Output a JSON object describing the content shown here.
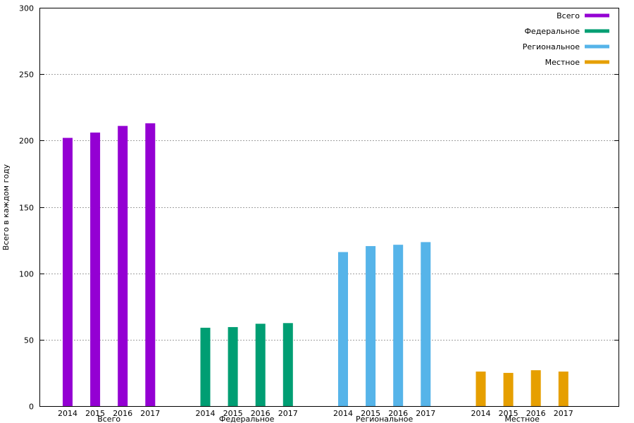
{
  "chart_data": {
    "type": "bar",
    "ylabel": "Всего в каждом году",
    "ylim": [
      0,
      300
    ],
    "y_ticks": [
      0,
      50,
      100,
      150,
      200,
      250,
      300
    ],
    "grid": true,
    "legend_position": "top-right",
    "groups": [
      {
        "name": "Всего",
        "color": "#9400d3",
        "categories": [
          "2014",
          "2015",
          "2016",
          "2017"
        ],
        "values": [
          202,
          206,
          211,
          213
        ]
      },
      {
        "name": "Федеральное",
        "color": "#009e73",
        "categories": [
          "2014",
          "2015",
          "2016",
          "2017"
        ],
        "values": [
          59,
          59.5,
          62,
          62.5
        ]
      },
      {
        "name": "Региональное",
        "color": "#56b4e9",
        "categories": [
          "2014",
          "2015",
          "2016",
          "2017"
        ],
        "values": [
          116,
          120.5,
          121.5,
          123.5
        ]
      },
      {
        "name": "Местное",
        "color": "#e69f00",
        "categories": [
          "2014",
          "2015",
          "2016",
          "2017"
        ],
        "values": [
          26,
          25,
          27,
          26
        ]
      }
    ]
  }
}
